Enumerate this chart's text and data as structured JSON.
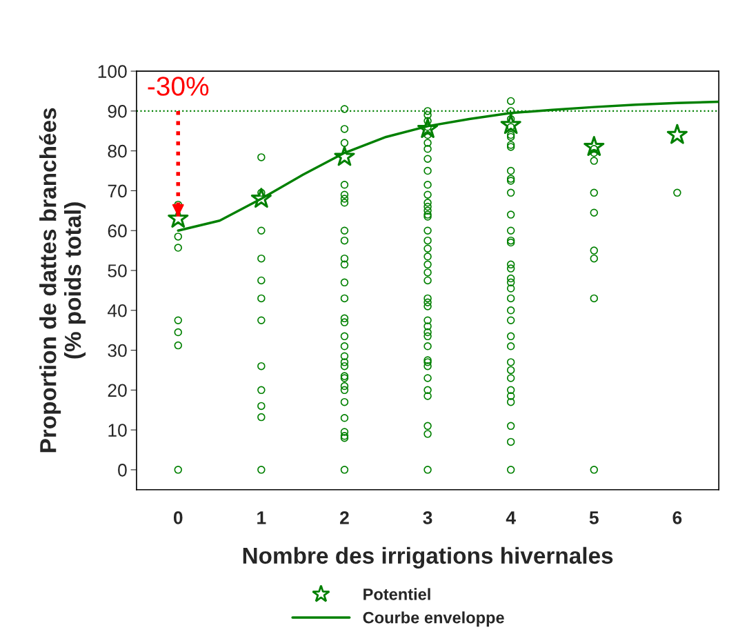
{
  "chart_data": {
    "type": "scatter",
    "xlabel": "Nombre des irrigations hivernales",
    "ylabel": "Proportion de dattes branchées\n(% poids total)",
    "xlim": [
      -0.5,
      6.5
    ],
    "xticks": [
      0,
      1,
      2,
      3,
      4,
      5,
      6
    ],
    "ylim": [
      -5,
      100
    ],
    "yticks": [
      0,
      10,
      20,
      30,
      40,
      50,
      60,
      70,
      80,
      90,
      100
    ],
    "grid": false,
    "legend": "bottom",
    "series": [
      {
        "marker": "circle",
        "color": "#008000",
        "x": [
          0,
          0,
          0,
          0,
          0,
          0,
          0,
          1,
          1,
          1,
          1,
          1,
          1,
          1,
          1,
          1,
          1,
          1,
          1,
          2,
          2,
          2,
          2,
          2,
          2,
          2,
          2,
          2,
          2,
          2,
          2,
          2,
          2,
          2,
          2,
          2,
          2,
          2,
          2,
          2,
          2,
          2,
          2,
          2,
          2,
          2,
          2,
          2,
          2,
          3,
          3,
          3,
          3,
          3,
          3,
          3,
          3,
          3,
          3,
          3,
          3,
          3,
          3,
          3,
          3,
          3,
          3,
          3,
          3,
          3,
          3,
          3,
          3,
          3,
          3,
          3,
          3,
          3,
          3,
          3,
          3,
          3,
          3,
          3,
          3,
          3,
          3,
          3,
          3,
          4,
          4,
          4,
          4,
          4,
          4,
          4,
          4,
          4,
          4,
          4,
          4,
          4,
          4,
          4,
          4,
          4,
          4,
          4,
          4,
          4,
          4,
          4,
          4,
          4,
          4,
          4,
          4,
          4,
          4,
          4,
          4,
          4,
          4,
          4,
          5,
          5,
          5,
          5,
          5,
          5,
          5,
          5,
          5,
          6
        ],
        "values": [
          66.5,
          58.5,
          55.7,
          37.5,
          34.5,
          31.2,
          0,
          78.4,
          69.5,
          60,
          53,
          47.5,
          43,
          37.5,
          26,
          20,
          16,
          13.2,
          0,
          90.5,
          85.5,
          82,
          71.5,
          69,
          68,
          67,
          60,
          57.5,
          53,
          51.5,
          47,
          43,
          38,
          37,
          33.5,
          31,
          28.5,
          27,
          26,
          23.5,
          23,
          21,
          20,
          17,
          13,
          9.5,
          8.5,
          8,
          0,
          90,
          89,
          87.5,
          86,
          84,
          82,
          80.5,
          78,
          75,
          71.5,
          69,
          67,
          66,
          65,
          64,
          63.5,
          60,
          57.5,
          55.5,
          53.5,
          51.5,
          49.5,
          47.5,
          43,
          42,
          41,
          37.5,
          36,
          34.5,
          33.5,
          31,
          27.5,
          27,
          26,
          23,
          20,
          18.5,
          11,
          9,
          0,
          92.5,
          90,
          88,
          86,
          84,
          83.5,
          81.5,
          81,
          75,
          73,
          72.5,
          69.5,
          64,
          60,
          57.5,
          57,
          51.5,
          50.5,
          48,
          47,
          45.5,
          43,
          40,
          37.5,
          33.5,
          31,
          27,
          25,
          23,
          20,
          18.5,
          17,
          11,
          7,
          0,
          80.5,
          79.5,
          77.5,
          69.5,
          64.5,
          55,
          53,
          43,
          0,
          69.5
        ]
      },
      {
        "type": "scatter",
        "marker": "star",
        "name": "Potentiel",
        "color": "#008000",
        "x": [
          0,
          1,
          2,
          3,
          4,
          5,
          6
        ],
        "values": [
          63,
          68,
          78.5,
          85.5,
          86.5,
          81,
          84
        ]
      },
      {
        "type": "line",
        "marker": "none",
        "line_style": "solid",
        "name": "Courbe enveloppe",
        "color": "#008000",
        "x": [
          0,
          0.5,
          1,
          1.5,
          2,
          2.5,
          3,
          3.5,
          4,
          4.5,
          5,
          5.5,
          6,
          6.5
        ],
        "values": [
          60,
          62.5,
          68,
          74,
          79.5,
          83.5,
          86.2,
          88,
          89.5,
          90.3,
          91,
          91.6,
          92,
          92.3
        ]
      }
    ],
    "ref_lines": [
      {
        "axis": "y",
        "value": 90,
        "color": "#008000",
        "line_style": "dotted"
      }
    ],
    "annotations": [
      {
        "text": "-30%",
        "x": 0,
        "y": 63
      }
    ]
  }
}
